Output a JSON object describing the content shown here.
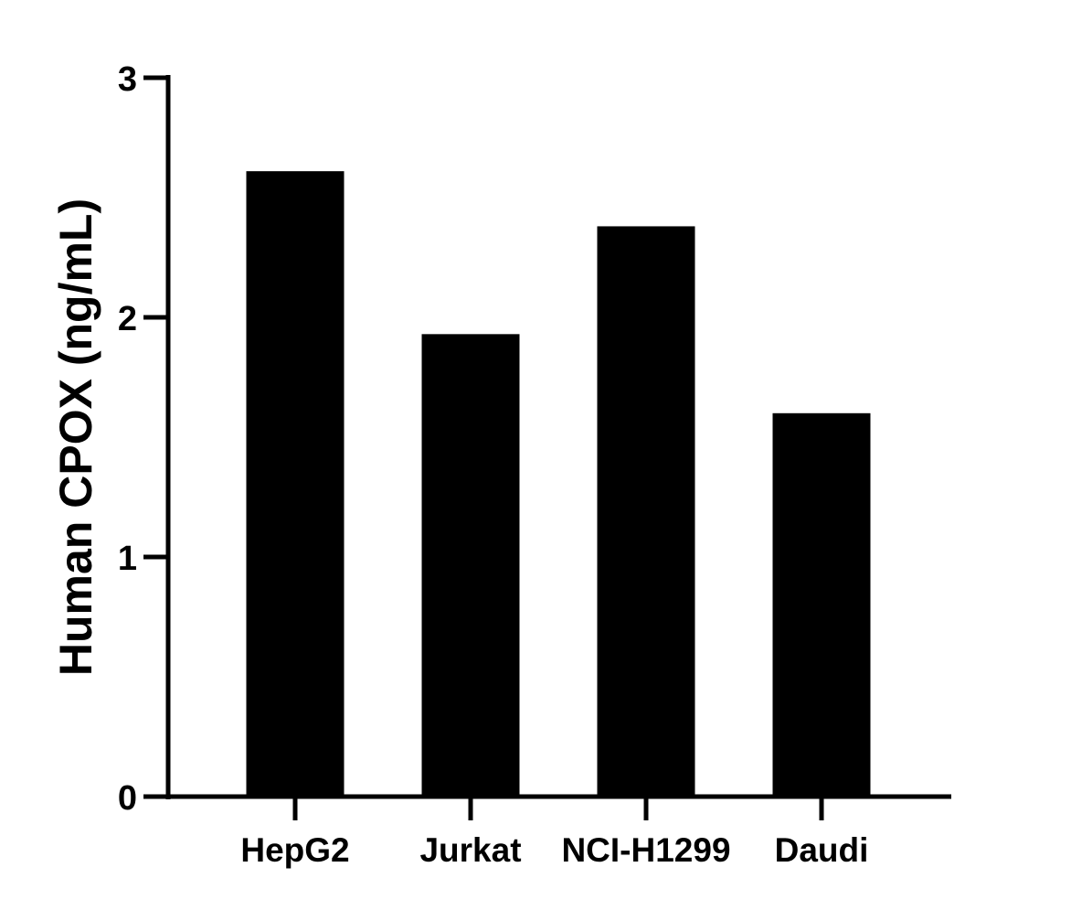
{
  "chart_data": {
    "type": "bar",
    "title": "",
    "xlabel": "",
    "ylabel": "Human CPOX (ng/mL)",
    "categories": [
      "HepG2",
      "Jurkat",
      "NCI-H1299",
      "Daudi"
    ],
    "values": [
      2.61,
      1.93,
      2.38,
      1.6
    ],
    "ylim": [
      0,
      3
    ],
    "yticks": [
      "0",
      "1",
      "2",
      "3"
    ],
    "grid": false,
    "bar_color": "#000000"
  }
}
